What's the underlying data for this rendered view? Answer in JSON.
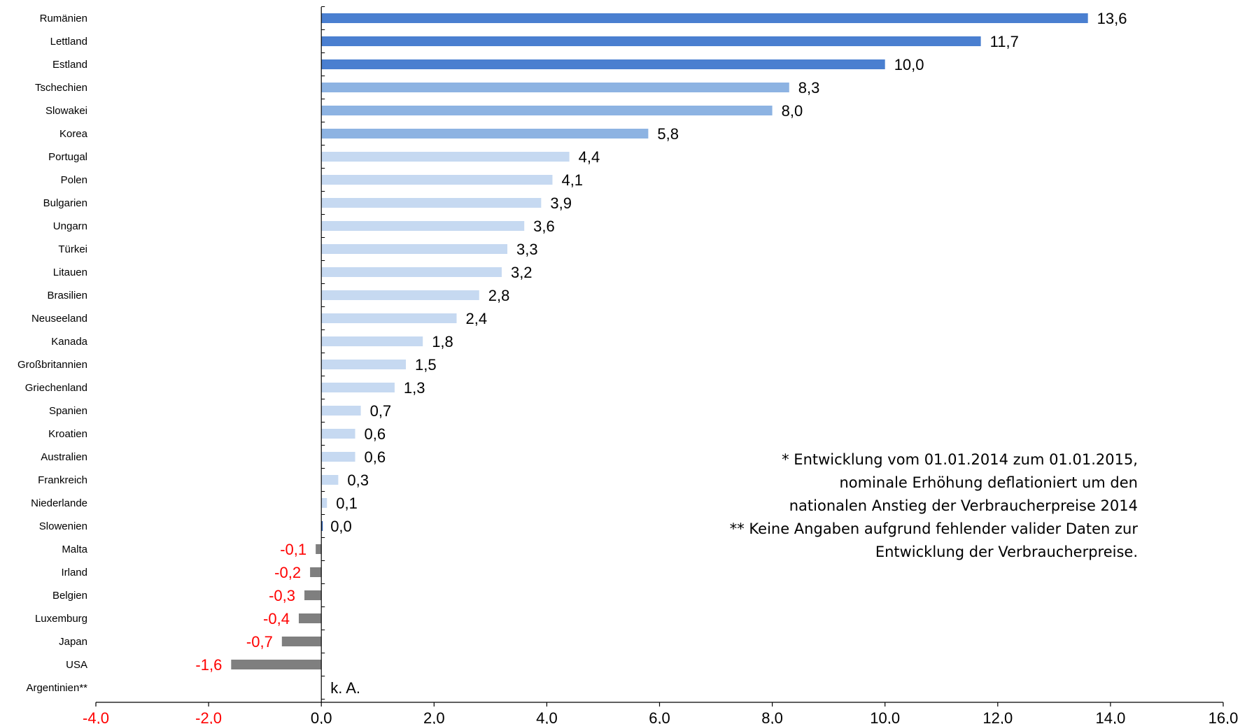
{
  "chart_data": {
    "type": "bar",
    "orientation": "horizontal",
    "title": "",
    "xlabel": "",
    "ylabel": "",
    "xlim": [
      -4.0,
      16.0
    ],
    "x_ticks": [
      -4,
      -2,
      0,
      2,
      4,
      6,
      8,
      10,
      12,
      14,
      16
    ],
    "x_tick_labels": [
      "-4,0",
      "-2,0",
      "0,0",
      "2,0",
      "4,0",
      "6,0",
      "8,0",
      "10,0",
      "12,0",
      "14,0",
      "16,0"
    ],
    "grid": false,
    "categories": [
      "Rumänien",
      "Lettland",
      "Estland",
      "Tschechien",
      "Slowakei",
      "Korea",
      "Portugal",
      "Polen",
      "Bulgarien",
      "Ungarn",
      "Türkei",
      "Litauen",
      "Brasilien",
      "Neuseeland",
      "Kanada",
      "Großbritannien",
      "Griechenland",
      "Spanien",
      "Kroatien",
      "Australien",
      "Frankreich",
      "Niederlande",
      "Slowenien",
      "Malta",
      "Irland",
      "Belgien",
      "Luxemburg",
      "Japan",
      "USA",
      "Argentinien**"
    ],
    "values": [
      13.6,
      11.7,
      10.0,
      8.3,
      8.0,
      5.8,
      4.4,
      4.1,
      3.9,
      3.6,
      3.3,
      3.2,
      2.8,
      2.4,
      1.8,
      1.5,
      1.3,
      0.7,
      0.6,
      0.6,
      0.3,
      0.1,
      0.0,
      -0.1,
      -0.2,
      -0.3,
      -0.4,
      -0.7,
      -1.6,
      null
    ],
    "value_labels": [
      "13,6",
      "11,7",
      "10,0",
      "8,3",
      "8,0",
      "5,8",
      "4,4",
      "4,1",
      "3,9",
      "3,6",
      "3,3",
      "3,2",
      "2,8",
      "2,4",
      "1,8",
      "1,5",
      "1,3",
      "0,7",
      "0,6",
      "0,6",
      "0,3",
      "0,1",
      "0,0",
      "-0,1",
      "-0,2",
      "-0,3",
      "-0,4",
      "-0,7",
      "-1,6",
      "k. A."
    ],
    "colors": {
      "high": "#4a7fd0",
      "medium": "#8db3e2",
      "low": "#c6d9f1",
      "zero": "#2a5caa",
      "negative": "#7f7f7f",
      "negative_text": "#ff0000",
      "axis": "#000000"
    },
    "notes": [
      "* Entwicklung vom 01.01.2014 zum 01.01.2015,",
      "nominale Erhöhung deflationiert um den",
      "nationalen Anstieg der Verbraucherpreise 2014",
      "** Keine Angaben aufgrund fehlender valider Daten zur",
      "Entwicklung der Verbraucherpreise."
    ]
  }
}
